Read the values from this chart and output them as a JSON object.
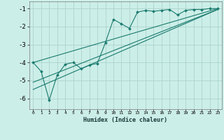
{
  "xlabel": "Humidex (Indice chaleur)",
  "background_color": "#cceee8",
  "grid_color": "#aad4cc",
  "line_color": "#1a7a6e",
  "xlim": [
    -0.5,
    23.5
  ],
  "ylim": [
    -6.6,
    -0.6
  ],
  "yticks": [
    -6,
    -5,
    -4,
    -3,
    -2,
    -1
  ],
  "xticks": [
    0,
    1,
    2,
    3,
    4,
    5,
    6,
    7,
    8,
    9,
    10,
    11,
    12,
    13,
    14,
    15,
    16,
    17,
    18,
    19,
    20,
    21,
    22,
    23
  ],
  "series1_x": [
    0,
    1,
    2,
    3,
    4,
    5,
    6,
    7,
    8,
    9,
    10,
    11,
    12,
    13,
    14,
    15,
    16,
    17,
    18,
    19,
    20,
    21,
    22,
    23
  ],
  "series1_y": [
    -4.0,
    -4.5,
    -6.1,
    -4.7,
    -4.1,
    -4.0,
    -4.35,
    -4.15,
    -4.05,
    -2.9,
    -1.6,
    -1.85,
    -2.1,
    -1.2,
    -1.1,
    -1.15,
    -1.1,
    -1.05,
    -1.35,
    -1.1,
    -1.05,
    -1.05,
    -1.0,
    -1.0
  ],
  "line1_x": [
    0,
    23
  ],
  "line1_y": [
    -4.0,
    -1.0
  ],
  "line2_x": [
    0,
    23
  ],
  "line2_y": [
    -5.5,
    -1.05
  ],
  "line3_x": [
    0,
    23
  ],
  "line3_y": [
    -5.1,
    -1.05
  ]
}
